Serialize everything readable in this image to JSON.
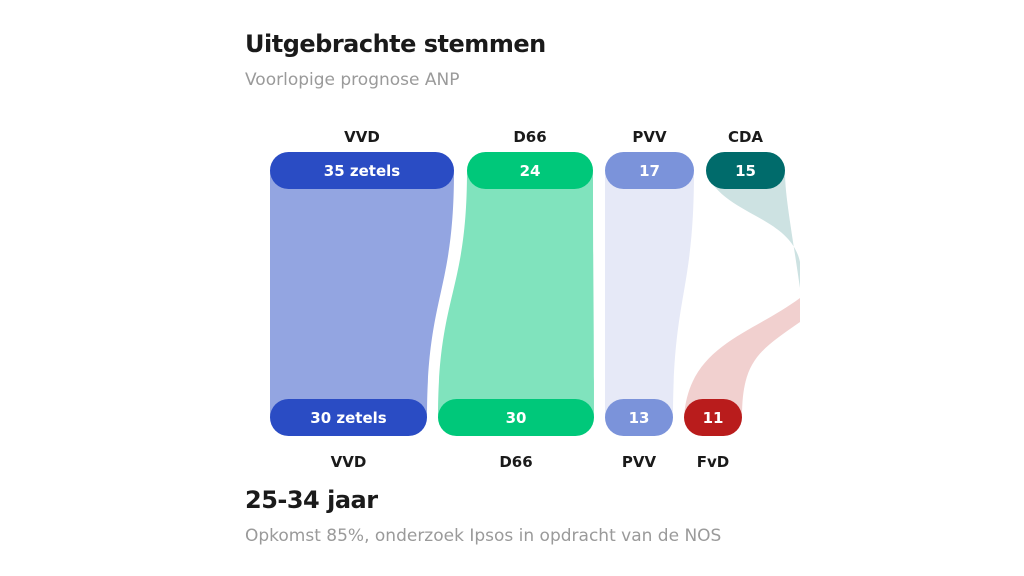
{
  "title": "Uitgebrachte stemmen",
  "subtitle": "Voorlopige prognose ANP",
  "footer_title": "25-34 jaar",
  "footer_subtitle": "Opkomst 85%, onderzoek Ipsos in opdracht van de NOS",
  "chart_data": {
    "type": "sankey",
    "top": [
      {
        "party": "VVD",
        "seats_label": "35 zetels",
        "color": "#2a4cc4",
        "flow_color": "#93a5e1"
      },
      {
        "party": "D66",
        "seats_label": "24",
        "color": "#00c87a",
        "flow_color": "#80e3bd"
      },
      {
        "party": "PVV",
        "seats_label": "17",
        "color": "#7b93da",
        "flow_color": "#e6e9f7"
      },
      {
        "party": "CDA",
        "seats_label": "15",
        "color": "#006b6b",
        "flow_color": "#cde2e2"
      }
    ],
    "bottom": [
      {
        "party": "VVD",
        "seats_label": "30 zetels",
        "color": "#2a4cc4"
      },
      {
        "party": "D66",
        "seats_label": "30",
        "color": "#00c87a"
      },
      {
        "party": "PVV",
        "seats_label": "13",
        "color": "#7b93da"
      },
      {
        "party": "FvD",
        "seats_label": "11",
        "color": "#b91c1c",
        "flow_color": "#f1d0cf"
      }
    ]
  }
}
